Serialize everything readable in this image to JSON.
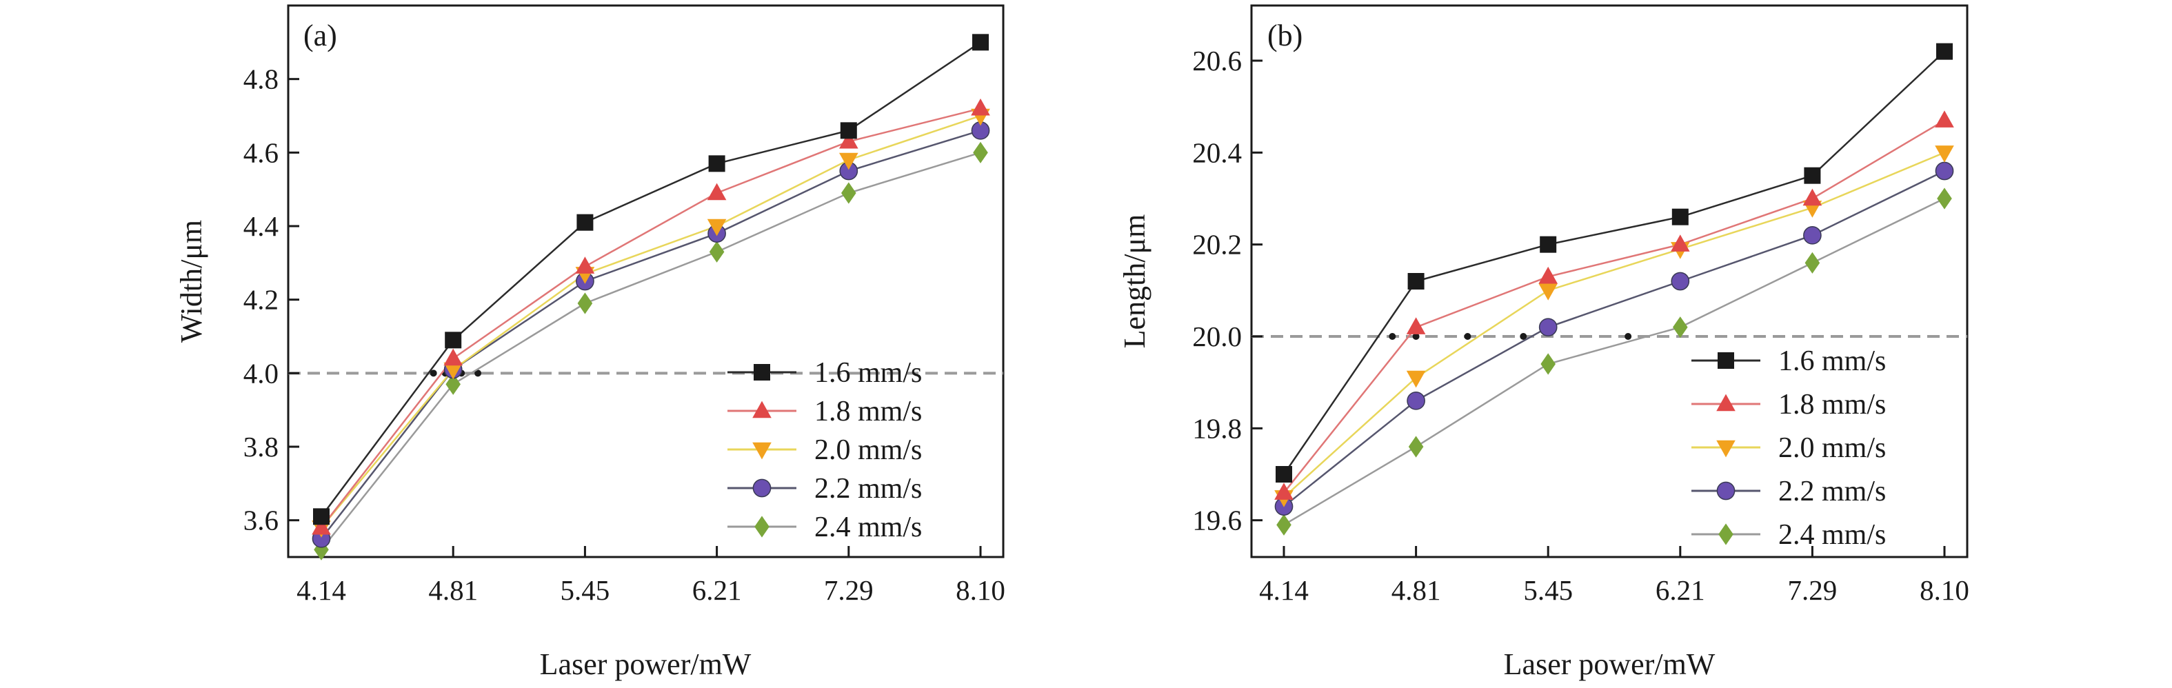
{
  "chart_data": [
    {
      "type": "line",
      "panel_label": "(a)",
      "xlabel": "Laser power/mW",
      "ylabel": "Width/μm",
      "categories": [
        "4.14",
        "4.81",
        "5.45",
        "6.21",
        "7.29",
        "8.10"
      ],
      "ylim": [
        3.5,
        5.0
      ],
      "yticks": [
        "3.6",
        "3.8",
        "4.0",
        "4.2",
        "4.4",
        "4.6",
        "4.8"
      ],
      "reference_line": 4.0,
      "crossing_marks": [
        4.71,
        4.77,
        4.85,
        4.93
      ],
      "legend_position": "bottom-right",
      "series": [
        {
          "name": "1.6 mm/s",
          "values": [
            3.61,
            4.09,
            4.41,
            4.57,
            4.66,
            4.9
          ]
        },
        {
          "name": "1.8 mm/s",
          "values": [
            3.58,
            4.04,
            4.29,
            4.49,
            4.63,
            4.72
          ]
        },
        {
          "name": "2.0 mm/s",
          "values": [
            3.58,
            4.01,
            4.27,
            4.4,
            4.58,
            4.7
          ]
        },
        {
          "name": "2.2 mm/s",
          "values": [
            3.55,
            4.01,
            4.25,
            4.38,
            4.55,
            4.66
          ]
        },
        {
          "name": "2.4 mm/s",
          "values": [
            3.52,
            3.97,
            4.19,
            4.33,
            4.49,
            4.6
          ]
        }
      ]
    },
    {
      "type": "line",
      "panel_label": "(b)",
      "xlabel": "Laser power/mW",
      "ylabel": "Length/μm",
      "categories": [
        "4.14",
        "4.81",
        "5.45",
        "6.21",
        "7.29",
        "8.10"
      ],
      "ylim": [
        19.52,
        20.72
      ],
      "yticks": [
        "19.6",
        "19.8",
        "20.0",
        "20.2",
        "20.4",
        "20.6"
      ],
      "reference_line": 20.0,
      "crossing_marks": [
        4.69,
        4.81,
        5.06,
        5.33,
        5.91
      ],
      "legend_position": "bottom-right",
      "series": [
        {
          "name": "1.6 mm/s",
          "values": [
            19.7,
            20.12,
            20.2,
            20.26,
            20.35,
            20.62
          ]
        },
        {
          "name": "1.8 mm/s",
          "values": [
            19.66,
            20.02,
            20.13,
            20.2,
            20.3,
            20.47
          ]
        },
        {
          "name": "2.0 mm/s",
          "values": [
            19.65,
            19.91,
            20.1,
            20.19,
            20.28,
            20.4
          ]
        },
        {
          "name": "2.2 mm/s",
          "values": [
            19.63,
            19.86,
            20.02,
            20.12,
            20.22,
            20.36
          ]
        },
        {
          "name": "2.4 mm/s",
          "values": [
            19.59,
            19.76,
            19.94,
            20.02,
            20.16,
            20.3
          ]
        }
      ]
    }
  ],
  "series_styles": [
    {
      "marker": "square",
      "line_color": "#2b2b2b",
      "marker_color": "#1a1a1a"
    },
    {
      "marker": "triangle-up",
      "line_color": "#e07676",
      "marker_color": "#e04848"
    },
    {
      "marker": "triangle-down",
      "line_color": "#e8d65a",
      "marker_color": "#f2a21e"
    },
    {
      "marker": "circle",
      "line_color": "#56566e",
      "marker_color": "#6a4fb0"
    },
    {
      "marker": "diamond",
      "line_color": "#9a9a9a",
      "marker_color": "#7aa63a"
    }
  ],
  "reference_line_color": "#9a9a9a"
}
